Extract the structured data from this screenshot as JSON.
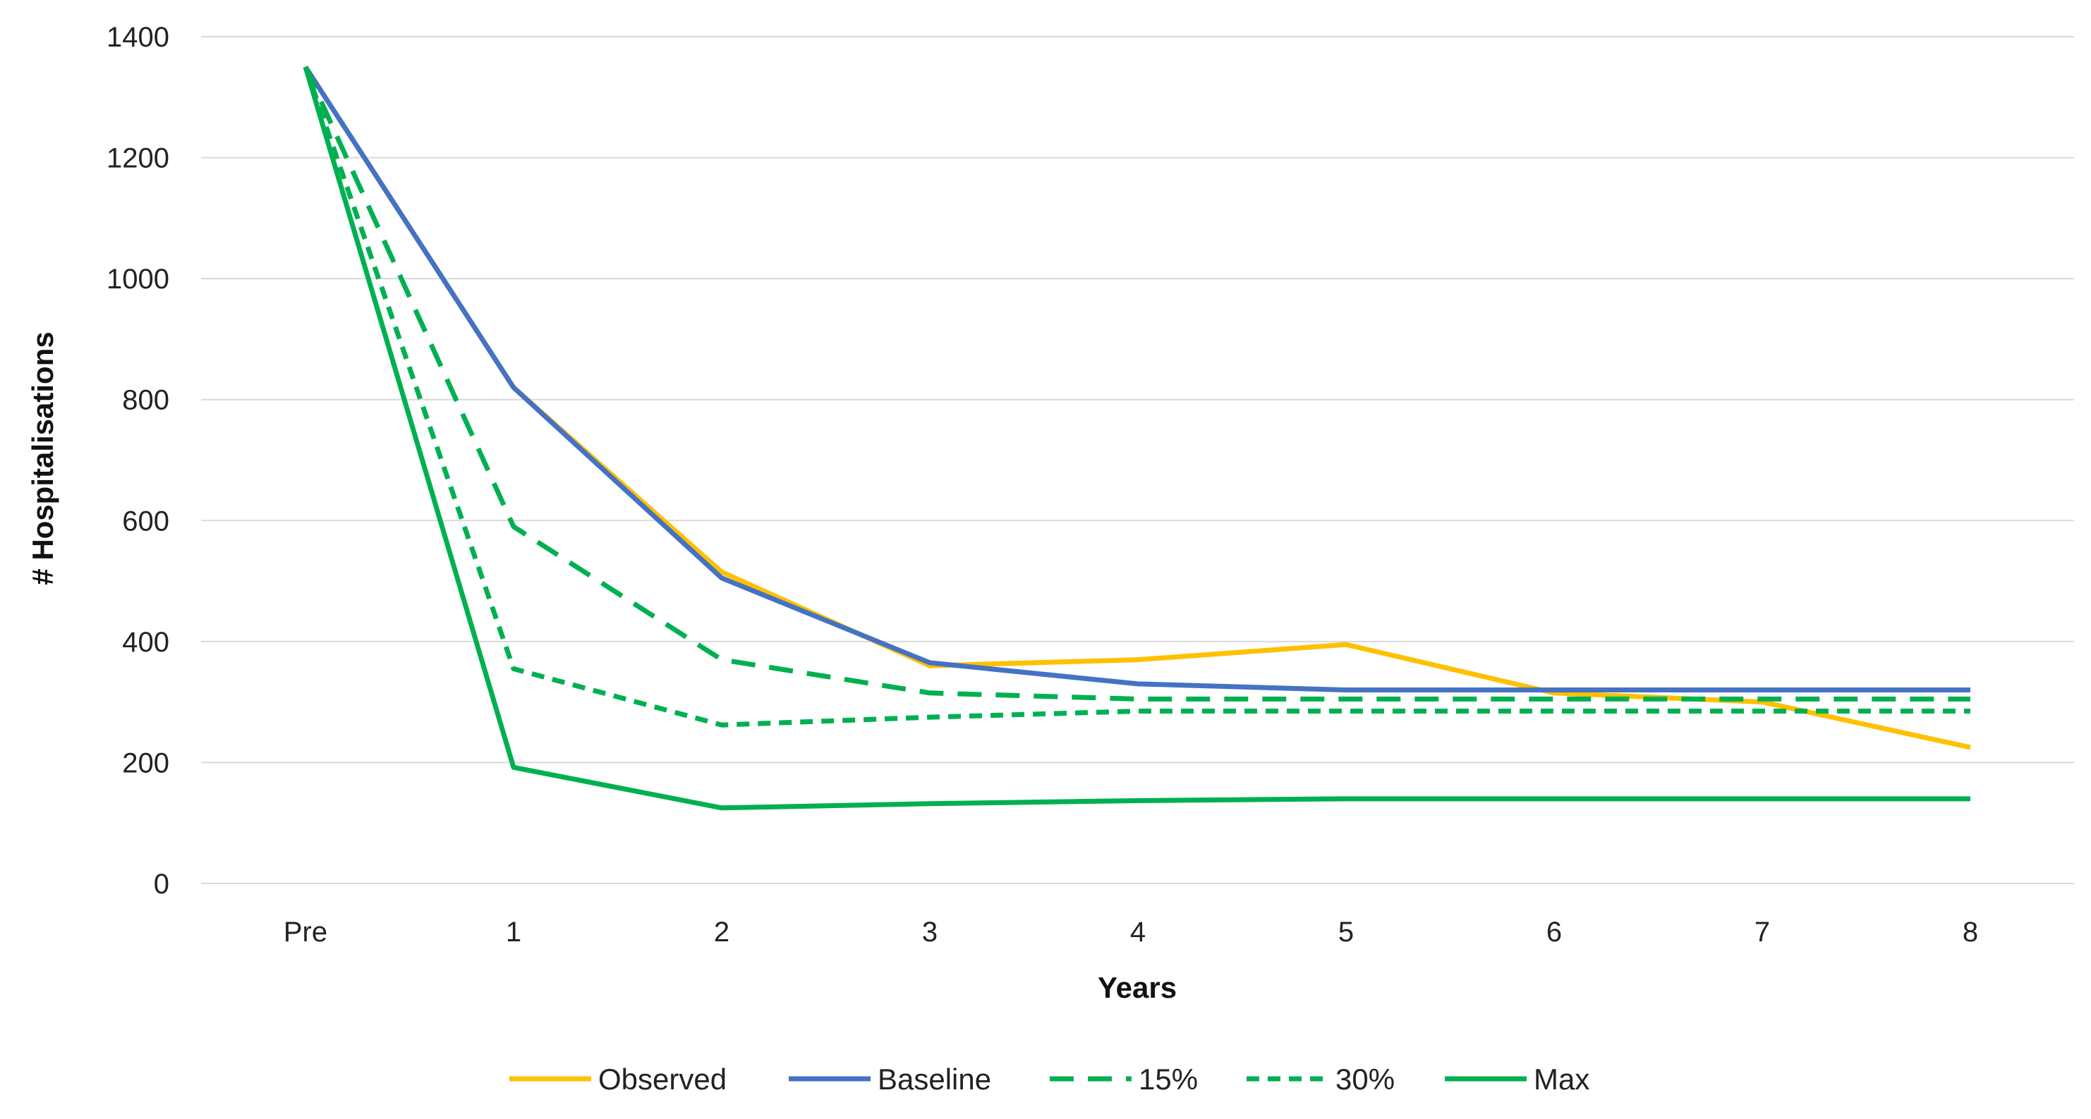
{
  "chart_data": {
    "type": "line",
    "title": "",
    "xlabel": "Years",
    "ylabel": "# Hospitalisations",
    "categories": [
      "Pre",
      "1",
      "2",
      "3",
      "4",
      "5",
      "6",
      "7",
      "8"
    ],
    "ylim": [
      0,
      1400
    ],
    "yticks": [
      "0",
      "200",
      "400",
      "600",
      "800",
      "1000",
      "1200",
      "1400"
    ],
    "grid": true,
    "legend_position": "bottom",
    "series": [
      {
        "name": "Observed",
        "color": "#FFC000",
        "dash": "solid",
        "values": [
          1350,
          820,
          515,
          360,
          370,
          395,
          315,
          300,
          225
        ]
      },
      {
        "name": "Baseline",
        "color": "#4472C4",
        "dash": "solid",
        "values": [
          1350,
          820,
          505,
          365,
          330,
          320,
          320,
          320,
          320
        ]
      },
      {
        "name": "15%",
        "color": "#00B050",
        "dash": "long-dash",
        "values": [
          1350,
          590,
          370,
          315,
          305,
          305,
          305,
          305,
          305
        ]
      },
      {
        "name": "30%",
        "color": "#00B050",
        "dash": "short-dash",
        "values": [
          1350,
          355,
          262,
          275,
          285,
          285,
          285,
          285,
          285
        ]
      },
      {
        "name": "Max",
        "color": "#00B050",
        "dash": "solid",
        "values": [
          1350,
          192,
          125,
          132,
          137,
          140,
          140,
          140,
          140
        ]
      }
    ]
  }
}
